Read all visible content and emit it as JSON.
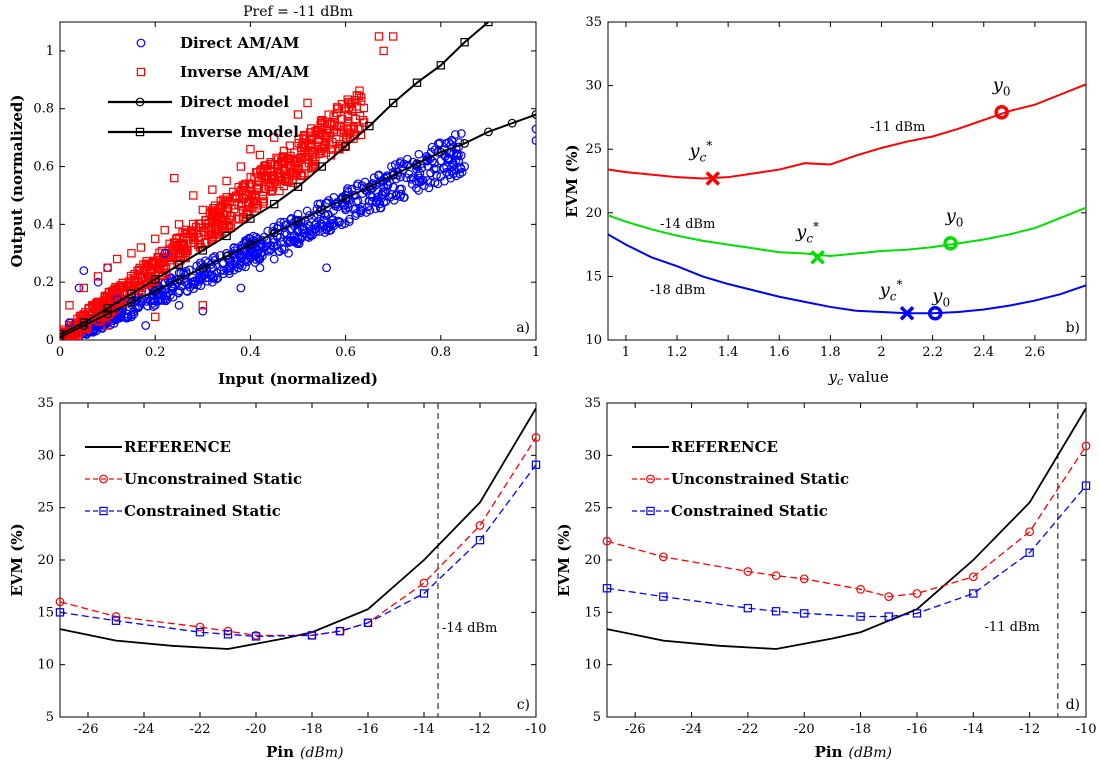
{
  "chart_data": [
    {
      "panel": "a",
      "type": "scatter",
      "title": "Pref = -11 dBm",
      "xlabel": "Input (normalized)",
      "ylabel": "Output (normalized)",
      "panel_label": "a)",
      "xlim": [
        0,
        1
      ],
      "ylim": [
        0,
        1.1
      ],
      "xticks": [
        0,
        0.2,
        0.4,
        0.6,
        0.8,
        1
      ],
      "yticks": [
        0,
        0.2,
        0.4,
        0.6,
        0.8,
        1
      ],
      "legend_position": "top-left",
      "colors": {
        "direct": "#0000ff",
        "inverse": "#ff0000",
        "model": "#000000"
      },
      "series": [
        {
          "name": "Direct AM/AM",
          "marker": "circle",
          "points": [
            [
              0.02,
              0.06
            ],
            [
              0.04,
              0.18
            ],
            [
              0.05,
              0.24
            ],
            [
              0.08,
              0.2
            ],
            [
              0.1,
              0.25
            ],
            [
              0.12,
              0.14
            ],
            [
              0.15,
              0.08
            ],
            [
              0.18,
              0.05
            ],
            [
              0.2,
              0.12
            ],
            [
              0.22,
              0.3
            ],
            [
              0.25,
              0.12
            ],
            [
              0.28,
              0.2
            ],
            [
              0.3,
              0.1
            ],
            [
              0.32,
              0.2
            ],
            [
              0.35,
              0.3
            ],
            [
              0.38,
              0.18
            ],
            [
              0.4,
              0.3
            ],
            [
              0.42,
              0.25
            ],
            [
              0.45,
              0.28
            ],
            [
              0.48,
              0.3
            ],
            [
              0.5,
              0.35
            ],
            [
              0.52,
              0.4
            ],
            [
              0.55,
              0.4
            ],
            [
              0.56,
              0.25
            ],
            [
              0.6,
              0.45
            ],
            [
              0.62,
              0.5
            ],
            [
              0.65,
              0.48
            ],
            [
              0.68,
              0.55
            ],
            [
              0.7,
              0.58
            ],
            [
              0.72,
              0.6
            ],
            [
              0.75,
              0.6
            ],
            [
              0.78,
              0.65
            ],
            [
              0.8,
              0.62
            ],
            [
              0.82,
              0.65
            ],
            [
              0.85,
              0.6
            ],
            [
              1.0,
              0.73
            ],
            [
              1.0,
              0.69
            ]
          ]
        },
        {
          "name": "Inverse AM/AM",
          "marker": "square",
          "points": [
            [
              0.02,
              0.12
            ],
            [
              0.05,
              0.18
            ],
            [
              0.08,
              0.22
            ],
            [
              0.1,
              0.25
            ],
            [
              0.12,
              0.28
            ],
            [
              0.15,
              0.3
            ],
            [
              0.17,
              0.32
            ],
            [
              0.2,
              0.35
            ],
            [
              0.22,
              0.38
            ],
            [
              0.25,
              0.4
            ],
            [
              0.24,
              0.56
            ],
            [
              0.28,
              0.5
            ],
            [
              0.3,
              0.45
            ],
            [
              0.32,
              0.52
            ],
            [
              0.35,
              0.55
            ],
            [
              0.38,
              0.6
            ],
            [
              0.4,
              0.66
            ],
            [
              0.42,
              0.64
            ],
            [
              0.45,
              0.7
            ],
            [
              0.5,
              0.78
            ],
            [
              0.52,
              0.82
            ],
            [
              0.55,
              0.75
            ],
            [
              0.6,
              0.8
            ],
            [
              0.62,
              0.83
            ],
            [
              0.1,
              0.05
            ],
            [
              0.2,
              0.08
            ],
            [
              0.3,
              0.12
            ],
            [
              0.68,
              1.0
            ],
            [
              0.67,
              1.05
            ],
            [
              0.7,
              1.05
            ]
          ]
        },
        {
          "name": "Direct model",
          "marker": "circle-line",
          "x": [
            0,
            0.05,
            0.1,
            0.15,
            0.2,
            0.25,
            0.3,
            0.35,
            0.4,
            0.45,
            0.5,
            0.55,
            0.6,
            0.65,
            0.7,
            0.75,
            0.8,
            0.85,
            0.9,
            0.95,
            1.0
          ],
          "y": [
            0.01,
            0.05,
            0.09,
            0.13,
            0.17,
            0.21,
            0.25,
            0.29,
            0.33,
            0.37,
            0.41,
            0.45,
            0.49,
            0.53,
            0.57,
            0.61,
            0.65,
            0.68,
            0.72,
            0.75,
            0.78
          ]
        },
        {
          "name": "Inverse model",
          "marker": "square-line",
          "x": [
            0,
            0.05,
            0.1,
            0.15,
            0.2,
            0.25,
            0.3,
            0.35,
            0.4,
            0.45,
            0.5,
            0.55,
            0.6,
            0.65,
            0.7,
            0.75,
            0.8,
            0.85,
            0.9
          ],
          "y": [
            0.02,
            0.06,
            0.11,
            0.16,
            0.21,
            0.26,
            0.31,
            0.36,
            0.42,
            0.47,
            0.53,
            0.6,
            0.67,
            0.74,
            0.82,
            0.89,
            0.95,
            1.03,
            1.1
          ]
        }
      ]
    },
    {
      "panel": "b",
      "type": "line",
      "xlabel": "yc value",
      "ylabel": "EVM (%)",
      "panel_label": "b)",
      "xlim": [
        0.93,
        2.8
      ],
      "ylim": [
        10,
        35
      ],
      "xticks": [
        1,
        1.2,
        1.4,
        1.6,
        1.8,
        2,
        2.2,
        2.4,
        2.6
      ],
      "yticks": [
        10,
        15,
        20,
        25,
        30,
        35
      ],
      "series": [
        {
          "name": "-11 dBm",
          "color": "#ff0000",
          "x": [
            0.93,
            1.0,
            1.1,
            1.2,
            1.3,
            1.4,
            1.5,
            1.6,
            1.7,
            1.8,
            1.9,
            2.0,
            2.1,
            2.2,
            2.3,
            2.4,
            2.5,
            2.6,
            2.7,
            2.8
          ],
          "y": [
            23.4,
            23.2,
            23.0,
            22.8,
            22.7,
            22.8,
            23.1,
            23.4,
            23.9,
            23.8,
            24.5,
            25.1,
            25.6,
            26.0,
            26.6,
            27.3,
            28.0,
            28.5,
            29.3,
            30.1
          ],
          "min_point": {
            "label": "y_c*",
            "x": 1.34,
            "y": 22.7
          },
          "y0_point": {
            "label": "y_0",
            "x": 2.47,
            "y": 27.9
          }
        },
        {
          "name": "-14 dBm",
          "color": "#00dd00",
          "x": [
            0.93,
            1.0,
            1.1,
            1.2,
            1.3,
            1.4,
            1.5,
            1.6,
            1.7,
            1.8,
            1.9,
            2.0,
            2.1,
            2.2,
            2.3,
            2.4,
            2.5,
            2.6,
            2.7,
            2.8
          ],
          "y": [
            19.8,
            19.3,
            18.7,
            18.2,
            17.8,
            17.5,
            17.2,
            16.9,
            16.8,
            16.6,
            16.8,
            17.0,
            17.1,
            17.3,
            17.6,
            17.9,
            18.3,
            18.8,
            19.6,
            20.4
          ],
          "min_point": {
            "label": "y_c*",
            "x": 1.75,
            "y": 16.5
          },
          "y0_point": {
            "label": "y_0",
            "x": 2.27,
            "y": 17.6
          }
        },
        {
          "name": "-18 dBm",
          "color": "#0000ff",
          "x": [
            0.93,
            1.0,
            1.1,
            1.2,
            1.3,
            1.4,
            1.5,
            1.6,
            1.7,
            1.8,
            1.9,
            2.0,
            2.1,
            2.2,
            2.3,
            2.4,
            2.5,
            2.6,
            2.7,
            2.8
          ],
          "y": [
            18.3,
            17.5,
            16.5,
            15.8,
            15.0,
            14.4,
            13.9,
            13.4,
            13.0,
            12.6,
            12.3,
            12.2,
            12.1,
            12.1,
            12.2,
            12.4,
            12.7,
            13.1,
            13.6,
            14.3
          ],
          "min_point": {
            "label": "y_c*",
            "x": 2.1,
            "y": 12.1
          },
          "y0_point": {
            "label": "y_0",
            "x": 2.21,
            "y": 12.1
          }
        }
      ]
    },
    {
      "panel": "c",
      "type": "line",
      "xlabel": "Pin",
      "xlabel_unit": "(dBm)",
      "ylabel": "EVM (%)",
      "panel_label": "c)",
      "xlim": [
        -27,
        -10
      ],
      "ylim": [
        5,
        35
      ],
      "xticks": [
        -26,
        -24,
        -22,
        -20,
        -18,
        -16,
        -14,
        -12,
        -10
      ],
      "yticks": [
        5,
        10,
        15,
        20,
        25,
        30,
        35
      ],
      "vline": {
        "x": -13.5,
        "label": "-14 dBm"
      },
      "legend_position": "top-left",
      "series": [
        {
          "name": "REFERENCE",
          "color": "#000000",
          "style": "solid",
          "x": [
            -27,
            -25,
            -23,
            -21,
            -19,
            -18,
            -16,
            -14,
            -12,
            -10
          ],
          "y": [
            13.4,
            12.3,
            11.8,
            11.5,
            12.5,
            13.1,
            15.3,
            20.0,
            25.5,
            34.5
          ]
        },
        {
          "name": "Unconstrained Static",
          "color": "#ff0000",
          "style": "dashed",
          "marker": "circle",
          "x": [
            -27,
            -25,
            -22,
            -21,
            -20,
            -18,
            -17,
            -16,
            -14,
            -12,
            -10
          ],
          "y": [
            16.0,
            14.6,
            13.6,
            13.2,
            12.8,
            12.8,
            13.2,
            14.0,
            17.8,
            23.3,
            31.7
          ]
        },
        {
          "name": "Constrained Static",
          "color": "#0000ff",
          "style": "dashed",
          "marker": "square",
          "x": [
            -27,
            -25,
            -22,
            -21,
            -20,
            -18,
            -17,
            -16,
            -14,
            -12,
            -10
          ],
          "y": [
            15.0,
            14.2,
            13.1,
            12.9,
            12.7,
            12.8,
            13.2,
            14.0,
            16.8,
            21.9,
            29.1
          ]
        }
      ]
    },
    {
      "panel": "d",
      "type": "line",
      "xlabel": "Pin",
      "xlabel_unit": "(dBm)",
      "ylabel": "EVM (%)",
      "panel_label": "d)",
      "xlim": [
        -27,
        -10
      ],
      "ylim": [
        5,
        35
      ],
      "xticks": [
        -26,
        -24,
        -22,
        -20,
        -18,
        -16,
        -14,
        -12,
        -10
      ],
      "yticks": [
        5,
        10,
        15,
        20,
        25,
        30,
        35
      ],
      "vline": {
        "x": -11,
        "label": "-11 dBm"
      },
      "legend_position": "top-left",
      "series": [
        {
          "name": "REFERENCE",
          "color": "#000000",
          "style": "solid",
          "x": [
            -27,
            -25,
            -23,
            -21,
            -19,
            -18,
            -16,
            -14,
            -12,
            -10
          ],
          "y": [
            13.4,
            12.3,
            11.8,
            11.5,
            12.5,
            13.1,
            15.3,
            20.0,
            25.5,
            34.5
          ]
        },
        {
          "name": "Unconstrained Static",
          "color": "#ff0000",
          "style": "dashed",
          "marker": "circle",
          "x": [
            -27,
            -25,
            -22,
            -21,
            -20,
            -18,
            -17,
            -16,
            -14,
            -12,
            -10
          ],
          "y": [
            21.8,
            20.3,
            18.9,
            18.5,
            18.2,
            17.2,
            16.5,
            16.8,
            18.4,
            22.7,
            30.9
          ]
        },
        {
          "name": "Constrained Static",
          "color": "#0000ff",
          "style": "dashed",
          "marker": "square",
          "x": [
            -27,
            -25,
            -22,
            -21,
            -20,
            -18,
            -17,
            -16,
            -14,
            -12,
            -10
          ],
          "y": [
            17.3,
            16.5,
            15.4,
            15.1,
            14.9,
            14.6,
            14.6,
            14.9,
            16.8,
            20.7,
            27.1
          ]
        }
      ]
    }
  ]
}
